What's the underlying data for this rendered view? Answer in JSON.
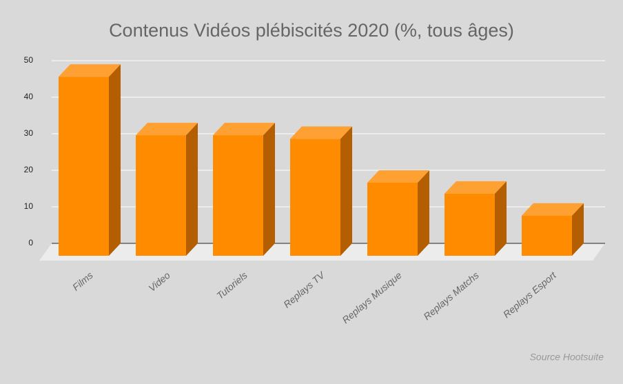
{
  "chart_data": {
    "type": "bar3d",
    "title": "Contenus Vidéos plébiscités 2020 (%, tous âges)",
    "categories": [
      "Films",
      "Video",
      "Tutoriels",
      "Replays TV",
      "Replays Musique",
      "Replays Matchs",
      "Replays Esport"
    ],
    "values": [
      49,
      33,
      33,
      32,
      20,
      17,
      11
    ],
    "color": "#ff8c00",
    "ylim": [
      0,
      50
    ],
    "yticks": [
      0,
      10,
      20,
      30,
      40,
      50
    ],
    "grid": true,
    "source": "Source Hootsuite"
  }
}
